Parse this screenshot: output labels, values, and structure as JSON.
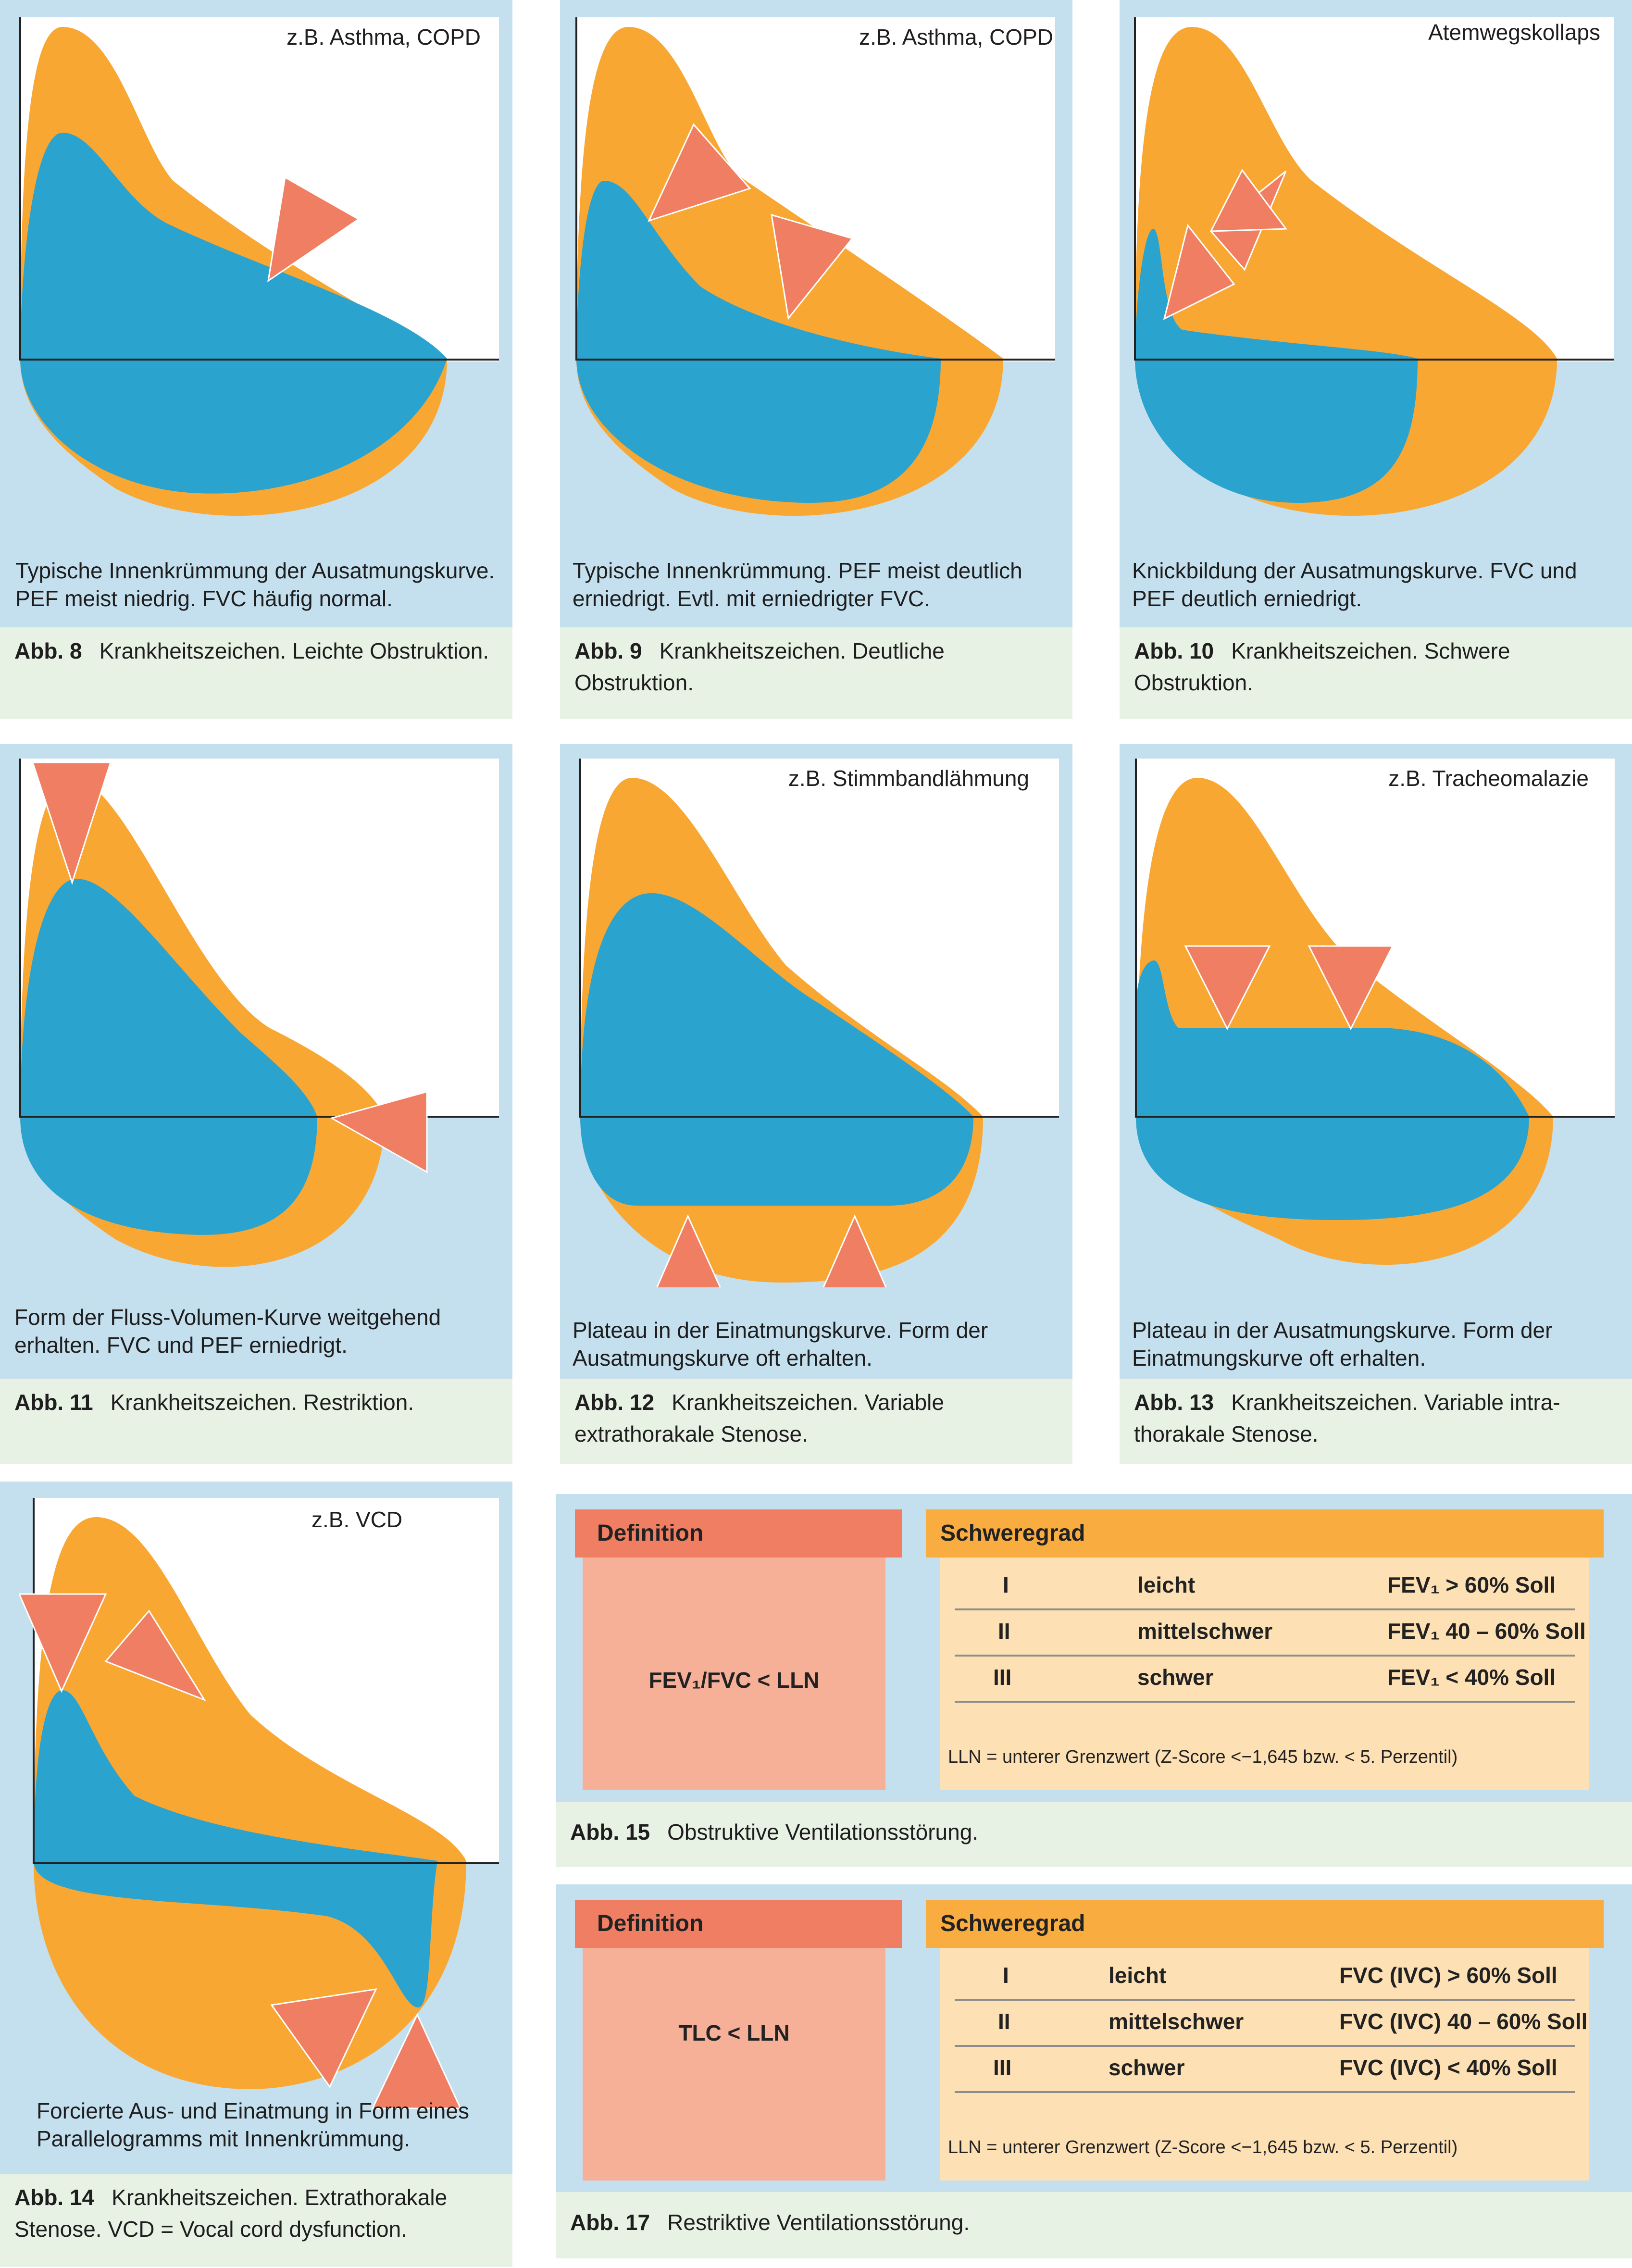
{
  "figures": [
    {
      "id": "abb8",
      "label": "z.B. Asthma, COPD",
      "description": [
        "Typische Innenkrümmung der Ausatmungskurve.",
        "PEF meist niedrig. FVC häufig normal."
      ],
      "caption_num": "Abb. 8",
      "caption": "Krankheitszeichen. Leichte Obstruktion."
    },
    {
      "id": "abb9",
      "label": "z.B. Asthma, COPD",
      "description": [
        "Typische Innenkrümmung. PEF meist deutlich",
        "erniedrigt. Evtl. mit erniedrigter FVC."
      ],
      "caption_num": "Abb. 9",
      "caption": "Krankheitszeichen. Deutliche Obstruktion."
    },
    {
      "id": "abb10",
      "label": "Atemwegskollaps",
      "description": [
        "Knickbildung der Ausatmungskurve. FVC und",
        "PEF deutlich erniedrigt."
      ],
      "caption_num": "Abb. 10",
      "caption": "Krankheitszeichen. Schwere Obstruktion."
    },
    {
      "id": "abb11",
      "label": "",
      "description": [
        "Form der Fluss-Volumen-Kurve weitgehend",
        "erhalten. FVC und PEF erniedrigt."
      ],
      "caption_num": "Abb. 11",
      "caption": "Krankheitszeichen. Restriktion."
    },
    {
      "id": "abb12",
      "label": "z.B. Stimmbandlähmung",
      "description": [
        "Plateau in der Einatmungskurve. Form der",
        "Ausatmungskurve oft erhalten."
      ],
      "caption_num": "Abb. 12",
      "caption": "Krankheitszeichen. Variable extrathorakale Stenose."
    },
    {
      "id": "abb13",
      "label": "z.B. Tracheomalazie",
      "description": [
        "Plateau in der Ausatmungskurve. Form der",
        "Einatmungskurve oft erhalten."
      ],
      "caption_num": "Abb. 13",
      "caption": "Krankheitszeichen. Variable intra-thorakale Stenose."
    },
    {
      "id": "abb14",
      "label": "z.B. VCD",
      "description": [
        "Forcierte Aus- und Einatmung in Form eines",
        "Parallelogramms mit Innenkrümmung."
      ],
      "caption_num": "Abb. 14",
      "caption": "Krankheitszeichen. Extrathorakale Stenose. VCD = Vocal cord dysfunction."
    }
  ],
  "tables": [
    {
      "id": "abb15",
      "definition_header": "Definition",
      "definition": "FEV₁/FVC < LLN",
      "severity_header": "Schweregrad",
      "rows": [
        [
          "I",
          "leicht",
          "FEV₁ > 60% Soll"
        ],
        [
          "II",
          "mittelschwer",
          "FEV₁ 40 – 60% Soll"
        ],
        [
          "III",
          "schwer",
          "FEV₁ < 40% Soll"
        ]
      ],
      "note": "LLN = unterer Grenzwert (Z-Score <−1,645 bzw. < 5. Perzentil)",
      "caption_num": "Abb. 15",
      "caption": "Obstruktive Ventilationsstörung."
    },
    {
      "id": "abb17",
      "definition_header": "Definition",
      "definition": "TLC < LLN",
      "severity_header": "Schweregrad",
      "rows": [
        [
          "I",
          "leicht",
          "FVC (IVC) > 60% Soll"
        ],
        [
          "II",
          "mittelschwer",
          "FVC (IVC) 40 – 60% Soll"
        ],
        [
          "III",
          "schwer",
          "FVC (IVC) < 40% Soll"
        ]
      ],
      "note": "LLN = unterer Grenzwert (Z-Score <−1,645 bzw. < 5. Perzentil)",
      "caption_num": "Abb. 17",
      "caption": "Restriktive Ventilationsstörung."
    }
  ],
  "colors": {
    "panel": "#c4dfee",
    "normal_curve": "#f9a733",
    "patient_curve": "#2aa3cf",
    "arrow": "#f07e62",
    "caption_bg": "#e8f2e4"
  }
}
